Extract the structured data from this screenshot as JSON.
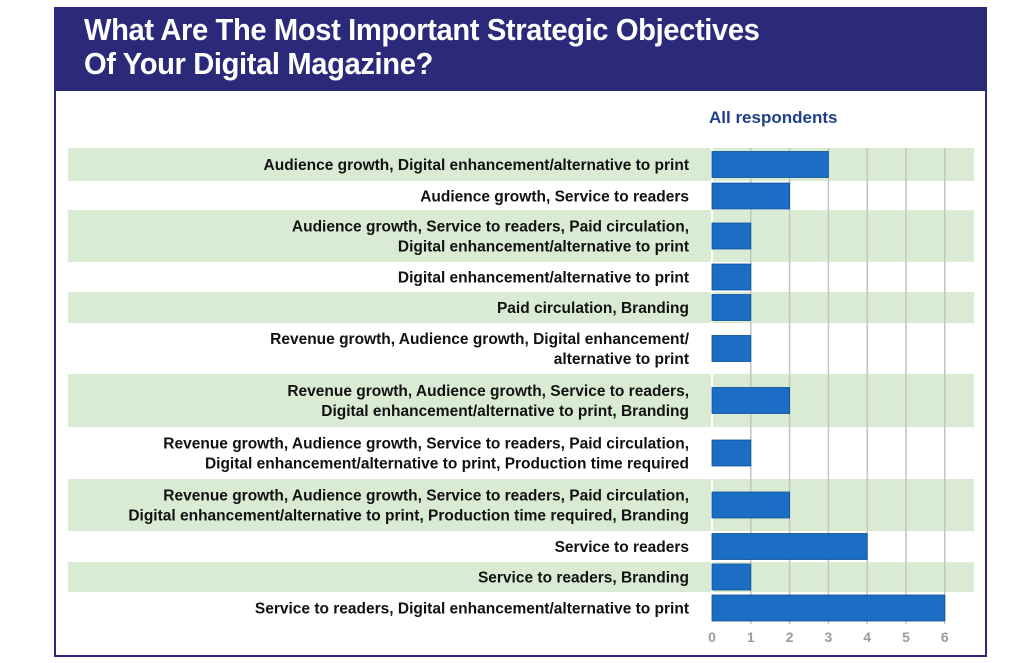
{
  "title": "What Are The Most Important Strategic Objectives\nOf Your Digital Magazine?",
  "colors": {
    "header_bg": "#2b2a7a",
    "band": "#d9ecd3",
    "bar": "#1c6ec4",
    "bar_edge": "#0d4f98",
    "grid": "#c4c4c4",
    "tick": "#9b9b9b",
    "series_label": "#1f3f8a"
  },
  "chart_data": {
    "type": "bar",
    "orientation": "horizontal",
    "title": "What Are The Most Important Strategic Objectives Of Your Digital Magazine?",
    "series_label": "All respondents",
    "categories": [
      [
        "Audience growth, Digital enhancement/alternative to print"
      ],
      [
        "Audience growth, Service to readers"
      ],
      [
        "Audience growth, Service to readers, Paid circulation,",
        "Digital enhancement/alternative to print"
      ],
      [
        "Digital enhancement/alternative to print"
      ],
      [
        "Paid circulation, Branding"
      ],
      [
        "Revenue growth, Audience growth, Digital enhancement/",
        "alternative to print"
      ],
      [
        "Revenue growth, Audience growth, Service to readers,",
        "Digital enhancement/alternative to print, Branding"
      ],
      [
        "Revenue growth, Audience growth, Service to readers, Paid circulation,",
        "Digital enhancement/alternative to print, Production time required"
      ],
      [
        "Revenue growth, Audience growth, Service to readers, Paid circulation,",
        "Digital enhancement/alternative to print, Production time required, Branding"
      ],
      [
        "Service to readers"
      ],
      [
        "Service to readers, Branding"
      ],
      [
        "Service to readers, Digital enhancement/alternative to print"
      ]
    ],
    "series": [
      {
        "name": "All respondents",
        "values": [
          3,
          2,
          1,
          1,
          1,
          1,
          2,
          1,
          2,
          4,
          1,
          6
        ]
      }
    ],
    "x_ticks": [
      "0",
      "1",
      "2",
      "3",
      "4",
      "5",
      "6"
    ],
    "xlim": [
      0,
      6
    ],
    "grid": true,
    "alternating_row_bands": true
  }
}
